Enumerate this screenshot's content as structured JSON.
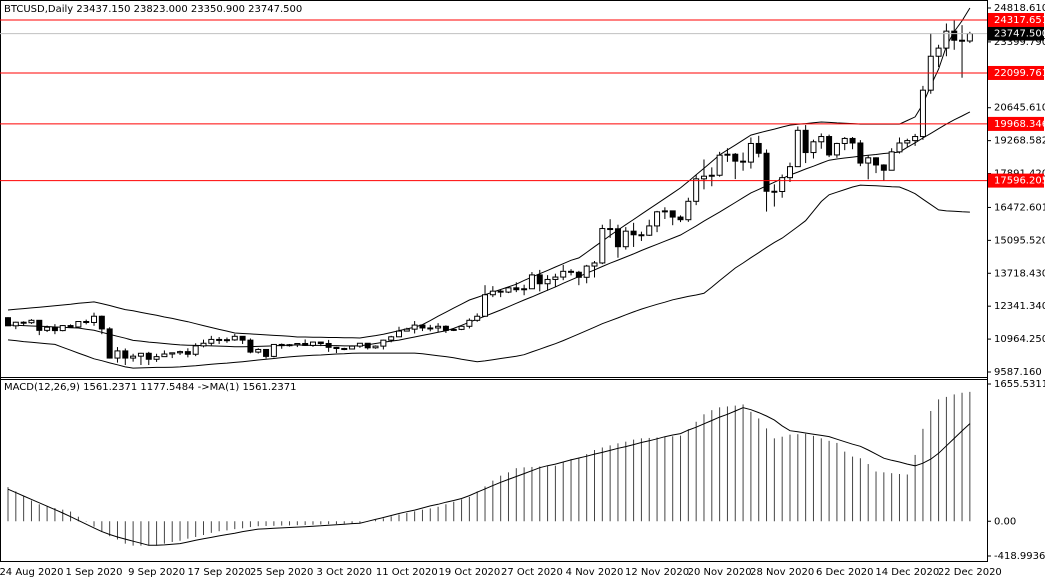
{
  "chart_data": [
    {
      "type": "candlestick",
      "title": "BTCUSD,Daily  23437.150 23823.000 23350.900 23747.500",
      "categories": [
        null,
        null,
        null,
        "24 Aug 2020",
        null,
        null,
        null,
        null,
        null,
        null,
        null,
        "1 Sep 2020",
        null,
        null,
        null,
        null,
        null,
        null,
        null,
        "9 Sep 2020",
        null,
        null,
        null,
        null,
        null,
        null,
        null,
        "17 Sep 2020",
        null,
        null,
        null,
        null,
        null,
        null,
        null,
        "25 Sep 2020",
        null,
        null,
        null,
        null,
        null,
        null,
        null,
        "3 Oct 2020",
        null,
        null,
        null,
        null,
        null,
        null,
        null,
        "11 Oct 2020",
        null,
        null,
        null,
        null,
        null,
        null,
        null,
        "19 Oct 2020",
        null,
        null,
        null,
        null,
        null,
        null,
        null,
        "27 Oct 2020",
        null,
        null,
        null,
        null,
        null,
        null,
        null,
        "4 Nov 2020",
        null,
        null,
        null,
        null,
        null,
        null,
        null,
        "12 Nov 2020",
        null,
        null,
        null,
        null,
        null,
        null,
        null,
        "20 Nov 2020",
        null,
        null,
        null,
        null,
        null,
        null,
        null,
        "28 Nov 2020",
        null,
        null,
        null,
        null,
        null,
        null,
        null,
        "6 Dec 2020",
        null,
        null,
        null,
        null,
        null,
        null,
        null,
        "14 Dec 2020",
        null,
        null,
        null,
        null,
        null,
        null,
        null,
        "22 Dec 2020"
      ],
      "open": [
        11860,
        11520,
        11670,
        11650,
        11750,
        11330,
        11460,
        11320,
        11530,
        11470,
        11700,
        11660,
        11920,
        11390,
        10170,
        10470,
        10170,
        10250,
        10370,
        10120,
        10230,
        10340,
        10390,
        10440,
        10330,
        10680,
        10790,
        10950,
        10940,
        10930,
        11080,
        10920,
        10420,
        10530,
        10240,
        10740,
        10690,
        10730,
        10780,
        10700,
        10840,
        10780,
        10620,
        10570,
        10550,
        10670,
        10790,
        10600,
        10670,
        10920,
        11060,
        11300,
        11380,
        11550,
        11430,
        11430,
        11500,
        11330,
        11370,
        11500,
        11750,
        11920,
        12820,
        12970,
        12930,
        13110,
        13030,
        13070,
        13650,
        13280,
        13460,
        13560,
        13800,
        13760,
        13550,
        14020,
        14150,
        15590,
        15580,
        14830,
        15480,
        15330,
        15310,
        15700,
        16290,
        16330,
        16070,
        15960,
        16730,
        17670,
        17780,
        17820,
        18660,
        18700,
        18410,
        18370,
        19150,
        18740,
        17150,
        17140,
        17720,
        18180,
        19700,
        18770,
        19220,
        19440,
        18670,
        19150,
        19360,
        19170,
        18330,
        18550,
        18250,
        18030,
        18800,
        19170,
        19270,
        19440,
        21380,
        22800,
        23140,
        23850,
        23470,
        23437.15
      ],
      "high": [
        11880,
        11690,
        11710,
        11800,
        11760,
        11530,
        11590,
        11550,
        11580,
        11700,
        11780,
        12070,
        11950,
        11460,
        10630,
        10570,
        10350,
        10390,
        10430,
        10350,
        10490,
        10400,
        10480,
        10580,
        10790,
        10940,
        11100,
        11050,
        11030,
        11180,
        11080,
        10990,
        10580,
        10540,
        10750,
        10780,
        10760,
        10800,
        10950,
        10860,
        10850,
        10930,
        10640,
        10600,
        10700,
        10800,
        10800,
        10700,
        10940,
        11100,
        11480,
        11440,
        11720,
        11560,
        11560,
        11630,
        11540,
        11400,
        11500,
        11830,
        12040,
        13220,
        13180,
        13020,
        13150,
        13340,
        13240,
        13770,
        13860,
        13640,
        13700,
        14070,
        13890,
        13820,
        14070,
        14230,
        15750,
        15980,
        15750,
        15650,
        15830,
        15460,
        15960,
        16330,
        16480,
        16330,
        16140,
        16880,
        17840,
        18480,
        18150,
        18800,
        18950,
        18750,
        18770,
        19400,
        19470,
        18900,
        17440,
        17850,
        18350,
        19860,
        19920,
        19310,
        19570,
        19520,
        19180,
        19420,
        19420,
        19290,
        18650,
        18570,
        18280,
        18950,
        19400,
        19350,
        19550,
        21560,
        23770,
        23280,
        24170,
        24290,
        24100,
        23823
      ],
      "low": [
        11520,
        11380,
        11520,
        11600,
        11130,
        11260,
        11170,
        11290,
        11430,
        11460,
        11580,
        11520,
        11170,
        10150,
        9980,
        9880,
        10020,
        9880,
        9880,
        10010,
        10220,
        10170,
        10300,
        10200,
        10250,
        10620,
        10700,
        10760,
        10810,
        10890,
        10760,
        10370,
        10360,
        10150,
        10200,
        10560,
        10650,
        10630,
        10680,
        10640,
        10670,
        10430,
        10380,
        10500,
        10530,
        10600,
        10530,
        10560,
        10530,
        10830,
        11050,
        11290,
        11200,
        11300,
        11290,
        11250,
        11220,
        11300,
        11340,
        11410,
        11690,
        11900,
        12720,
        12720,
        12890,
        12930,
        12800,
        13060,
        12960,
        12990,
        13140,
        13430,
        13630,
        13220,
        13300,
        13540,
        14100,
        15200,
        14370,
        14710,
        14820,
        15070,
        15280,
        15440,
        15990,
        15730,
        15860,
        15870,
        16570,
        17230,
        17360,
        17760,
        18380,
        17660,
        18010,
        18100,
        18570,
        16300,
        16510,
        16880,
        17540,
        18180,
        18330,
        18520,
        18930,
        18580,
        18550,
        18870,
        18910,
        18200,
        17650,
        17910,
        17580,
        18020,
        18730,
        19000,
        19050,
        19300,
        21230,
        22350,
        22800,
        23070,
        21900,
        23350.9
      ],
      "close": [
        11520,
        11670,
        11650,
        11750,
        11330,
        11460,
        11320,
        11530,
        11470,
        11700,
        11660,
        11920,
        11390,
        10170,
        10470,
        10170,
        10250,
        10370,
        10120,
        10230,
        10340,
        10390,
        10440,
        10330,
        10680,
        10790,
        10950,
        10940,
        10930,
        11080,
        10920,
        10420,
        10530,
        10240,
        10740,
        10690,
        10730,
        10780,
        10700,
        10840,
        10780,
        10620,
        10570,
        10550,
        10670,
        10790,
        10600,
        10670,
        10920,
        11060,
        11300,
        11380,
        11550,
        11430,
        11430,
        11500,
        11330,
        11370,
        11500,
        11750,
        11920,
        12820,
        12970,
        12930,
        13110,
        13030,
        13070,
        13650,
        13280,
        13460,
        13560,
        13800,
        13760,
        13550,
        14020,
        14150,
        15590,
        15580,
        14830,
        15480,
        15330,
        15310,
        15700,
        16290,
        16330,
        16070,
        15960,
        16730,
        17670,
        17780,
        17820,
        18660,
        18700,
        18410,
        18370,
        19150,
        18740,
        17150,
        17140,
        17720,
        18180,
        19700,
        18770,
        19220,
        19440,
        18670,
        19150,
        19360,
        19170,
        18330,
        18550,
        18250,
        18030,
        18800,
        19170,
        19270,
        19440,
        21380,
        22800,
        23140,
        23850,
        23470,
        23437.15,
        23747.5
      ],
      "upper_band": [
        12180,
        12210,
        12240,
        12270,
        12300,
        12330,
        12360,
        12390,
        12420,
        12460,
        12490,
        12520,
        12450,
        12370,
        12280,
        12200,
        12150,
        12080,
        12020,
        11960,
        11890,
        11830,
        11760,
        11690,
        11610,
        11530,
        11450,
        11370,
        11300,
        11220,
        11200,
        11180,
        11160,
        11140,
        11120,
        11100,
        11080,
        11050,
        11050,
        11040,
        11040,
        11030,
        11030,
        11020,
        11020,
        11010,
        11060,
        11110,
        11170,
        11240,
        11320,
        11390,
        11460,
        11570,
        11740,
        11920,
        12090,
        12260,
        12430,
        12600,
        12710,
        12820,
        12930,
        13040,
        13150,
        13260,
        13420,
        13560,
        13700,
        13840,
        13980,
        14120,
        14260,
        14360,
        14590,
        14830,
        15060,
        15300,
        15530,
        15750,
        15970,
        16190,
        16410,
        16630,
        16850,
        17070,
        17290,
        17560,
        17840,
        18110,
        18390,
        18670,
        18880,
        19080,
        19290,
        19500,
        19590,
        19670,
        19750,
        19840,
        19920,
        19950,
        19980,
        20020,
        20050,
        20030,
        20010,
        20000,
        19980,
        19960,
        19960,
        19960,
        19960,
        19960,
        19960,
        20110,
        20260,
        20800,
        21570,
        22260,
        23220,
        23830,
        24280,
        24820
      ],
      "middle_band": [
        11550,
        11540,
        11530,
        11510,
        11500,
        11490,
        11470,
        11460,
        11440,
        11430,
        11380,
        11330,
        11250,
        11160,
        11080,
        11000,
        10910,
        10880,
        10840,
        10810,
        10780,
        10750,
        10720,
        10710,
        10700,
        10690,
        10680,
        10670,
        10660,
        10640,
        10640,
        10650,
        10660,
        10670,
        10680,
        10700,
        10710,
        10720,
        10710,
        10700,
        10700,
        10690,
        10690,
        10680,
        10680,
        10680,
        10730,
        10780,
        10830,
        10880,
        10920,
        10990,
        11050,
        11120,
        11180,
        11250,
        11310,
        11410,
        11540,
        11670,
        11800,
        11920,
        12050,
        12180,
        12320,
        12460,
        12600,
        12730,
        12870,
        13010,
        13150,
        13300,
        13440,
        13580,
        13720,
        13860,
        14000,
        14140,
        14270,
        14400,
        14530,
        14670,
        14800,
        14930,
        15060,
        15190,
        15320,
        15510,
        15700,
        15900,
        16090,
        16280,
        16480,
        16680,
        16880,
        17080,
        17230,
        17380,
        17530,
        17680,
        17830,
        17950,
        18080,
        18200,
        18330,
        18450,
        18500,
        18540,
        18580,
        18620,
        18660,
        18690,
        18730,
        18760,
        18790,
        18990,
        19180,
        19380,
        19570,
        19770,
        19960,
        20140,
        20300,
        20470
      ],
      "lower_band": [
        10930,
        10900,
        10860,
        10830,
        10800,
        10770,
        10740,
        10620,
        10500,
        10380,
        10260,
        10140,
        10060,
        9970,
        9890,
        9800,
        9750,
        9760,
        9770,
        9780,
        9780,
        9790,
        9800,
        9830,
        9850,
        9880,
        9910,
        9940,
        9960,
        9990,
        10020,
        10050,
        10090,
        10120,
        10150,
        10190,
        10220,
        10250,
        10270,
        10290,
        10300,
        10320,
        10340,
        10350,
        10370,
        10380,
        10380,
        10380,
        10380,
        10380,
        10380,
        10380,
        10380,
        10350,
        10310,
        10270,
        10230,
        10180,
        10120,
        10070,
        10020,
        10050,
        10100,
        10150,
        10200,
        10250,
        10310,
        10430,
        10540,
        10660,
        10770,
        10900,
        11040,
        11180,
        11320,
        11460,
        11610,
        11730,
        11850,
        11980,
        12100,
        12220,
        12320,
        12420,
        12510,
        12610,
        12680,
        12750,
        12810,
        12880,
        13140,
        13410,
        13670,
        13940,
        14150,
        14370,
        14580,
        14800,
        15010,
        15190,
        15430,
        15670,
        15920,
        16320,
        16720,
        17000,
        17110,
        17220,
        17330,
        17410,
        17390,
        17380,
        17360,
        17340,
        17330,
        17200,
        17050,
        16820,
        16590,
        16370,
        16330,
        16310,
        16290,
        16280
      ],
      "ylim": [
        9587.16,
        24818.61
      ],
      "yticks": [
        {
          "value": 24818.61,
          "label": "24818.610"
        },
        {
          "value": 23399.79,
          "label": "23399.790"
        },
        {
          "value": 20645.61,
          "label": "20645.610"
        },
        19268.582,
        {
          "value": 17891.42,
          "label": "17891.420"
        },
        16472.601,
        {
          "value": 15095.52,
          "label": "15095.520"
        },
        {
          "value": 13718.43,
          "label": "13718.430"
        },
        {
          "value": 12341.34,
          "label": "12341.340"
        },
        {
          "value": 10964.25,
          "label": "10964.250"
        },
        {
          "value": 9587.16,
          "label": "9587.160"
        }
      ],
      "levels": [
        24317.651,
        22099.761,
        19968.346,
        17596.205
      ],
      "level_color": "#ff0000",
      "current_price": {
        "value": 23747.5,
        "label": "23747.500"
      }
    },
    {
      "type": "macd",
      "title": "MACD(12,26,9) 1561.2371 1177.5484  ->MA(1) 1561.2371",
      "histogram": [
        411,
        360,
        300,
        250,
        205,
        185,
        160,
        140,
        117,
        55,
        -5,
        -65,
        -130,
        -180,
        -220,
        -270,
        -294,
        -294,
        -294,
        -294,
        -270,
        -250,
        -235,
        -210,
        -190,
        -165,
        -140,
        -120,
        -110,
        -95,
        -85,
        -70,
        -60,
        -57,
        -55,
        -52,
        -50,
        -47,
        -45,
        -42,
        -39,
        -36,
        -33,
        -30,
        -27,
        -23,
        -5,
        15,
        35,
        60,
        82,
        100,
        120,
        140,
        155,
        175,
        205,
        235,
        265,
        294,
        360,
        420,
        490,
        550,
        590,
        640,
        650,
        655,
        660,
        665,
        670,
        710,
        750,
        765,
        810,
        860,
        890,
        915,
        940,
        960,
        985,
        1000,
        1005,
        1010,
        1020,
        1025,
        1033,
        1110,
        1200,
        1290,
        1340,
        1374,
        1385,
        1395,
        1409,
        1320,
        1240,
        1120,
        1000,
        1020,
        1045,
        1050,
        1055,
        1030,
        1000,
        970,
        945,
        840,
        780,
        760,
        690,
        600,
        590,
        580,
        570,
        564,
        800,
        1115,
        1330,
        1470,
        1500,
        1530,
        1550,
        1561.2371
      ],
      "signal": [
        387,
        346,
        305,
        264,
        223,
        182,
        141,
        100,
        55,
        10,
        -35,
        -80,
        -125,
        -160,
        -190,
        -215,
        -240,
        -265,
        -290,
        -290,
        -285,
        -278,
        -270,
        -250,
        -230,
        -210,
        -195,
        -176,
        -160,
        -145,
        -125,
        -110,
        -95,
        -90,
        -85,
        -80,
        -75,
        -70,
        -65,
        -60,
        -55,
        -48,
        -42,
        -35,
        -28,
        -23,
        0,
        22,
        45,
        70,
        94,
        115,
        135,
        160,
        185,
        205,
        230,
        250,
        275,
        310,
        350,
        390,
        430,
        470,
        505,
        540,
        575,
        610,
        646,
        670,
        690,
        715,
        740,
        763,
        785,
        810,
        830,
        855,
        880,
        900,
        925,
        950,
        970,
        995,
        1020,
        1040,
        1057,
        1100,
        1135,
        1175,
        1215,
        1256,
        1290,
        1330,
        1370,
        1345,
        1310,
        1270,
        1220,
        1150,
        1092,
        1080,
        1065,
        1050,
        1035,
        1021,
        990,
        960,
        930,
        904,
        860,
        810,
        760,
        735,
        715,
        690,
        669,
        700,
        750,
        820,
        910,
        1000,
        1090,
        1177.5484
      ],
      "ylim": [
        -418.9936,
        1655.5311
      ],
      "yticks": [
        1655.5311,
        {
          "value": 0,
          "label": "0.00"
        },
        -418.9936
      ]
    }
  ]
}
